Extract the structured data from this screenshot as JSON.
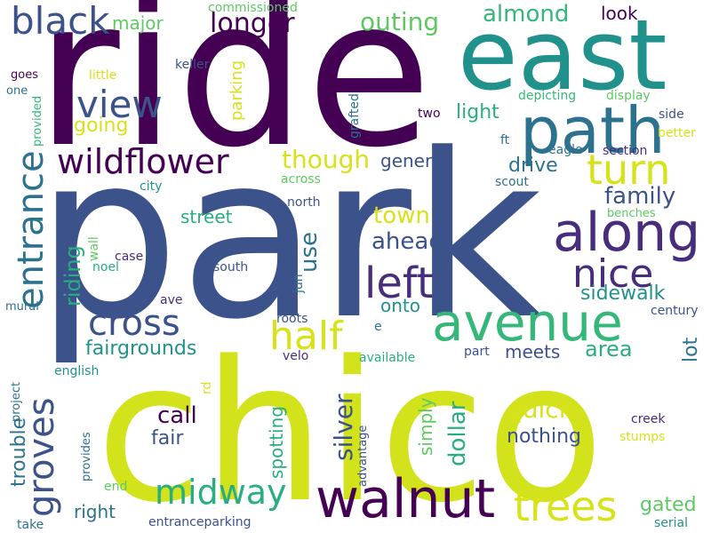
{
  "cloud": {
    "palette": {
      "dark_purple": "#440154",
      "purple": "#472d7b",
      "indigo": "#3b528b",
      "blue": "#2c728e",
      "teal": "#21918c",
      "green_teal": "#28ae80",
      "green": "#5ec962",
      "lime": "#addc30",
      "yellow": "#d8e219"
    },
    "words": [
      {
        "text": "ride",
        "color": "#440154"
      },
      {
        "text": "park",
        "color": "#3b528b"
      },
      {
        "text": "chico",
        "color": "#d2e21b"
      },
      {
        "text": "east",
        "color": "#21918c"
      },
      {
        "text": "path",
        "color": "#2c728e"
      },
      {
        "text": "along",
        "color": "#472d7b"
      },
      {
        "text": "avenue",
        "color": "#35b779"
      },
      {
        "text": "walnut",
        "color": "#440154"
      },
      {
        "text": "trees",
        "color": "#d8e219"
      },
      {
        "text": "black",
        "color": "#3b528b"
      },
      {
        "text": "view",
        "color": "#3b528b"
      },
      {
        "text": "wildflower",
        "color": "#440154"
      },
      {
        "text": "entrance",
        "color": "#2c728e"
      },
      {
        "text": "turn",
        "color": "#d8e219"
      },
      {
        "text": "left",
        "color": "#472d7b"
      },
      {
        "text": "nice",
        "color": "#472d7b"
      },
      {
        "text": "cross",
        "color": "#3b528b"
      },
      {
        "text": "half",
        "color": "#d8e219"
      },
      {
        "text": "groves",
        "color": "#3b528b"
      },
      {
        "text": "midway",
        "color": "#28ae80"
      },
      {
        "text": "longer",
        "color": "#440154"
      },
      {
        "text": "outing",
        "color": "#5ec962"
      },
      {
        "text": "almond",
        "color": "#35b779"
      },
      {
        "text": "look",
        "color": "#440154"
      },
      {
        "text": "major",
        "color": "#5ec962"
      },
      {
        "text": "commissioned",
        "color": "#5ec962"
      },
      {
        "text": "keller",
        "color": "#3b528b"
      },
      {
        "text": "goes",
        "color": "#440154"
      },
      {
        "text": "one",
        "color": "#2c728e"
      },
      {
        "text": "little",
        "color": "#d8e219"
      },
      {
        "text": "provided",
        "color": "#35b779"
      },
      {
        "text": "going",
        "color": "#d8e219"
      },
      {
        "text": "parking",
        "color": "#d8e219"
      },
      {
        "text": "light",
        "color": "#28ae80"
      },
      {
        "text": "grafted",
        "color": "#2c728e"
      },
      {
        "text": "two",
        "color": "#440154"
      },
      {
        "text": "depicting",
        "color": "#35b779"
      },
      {
        "text": "display",
        "color": "#5ec962"
      },
      {
        "text": "side",
        "color": "#3b528b"
      },
      {
        "text": "better",
        "color": "#d8e219"
      },
      {
        "text": "ft",
        "color": "#2c728e"
      },
      {
        "text": "eagle",
        "color": "#2c728e"
      },
      {
        "text": "section",
        "color": "#472d7b"
      },
      {
        "text": "though",
        "color": "#d8e219"
      },
      {
        "text": "general",
        "color": "#3b528b"
      },
      {
        "text": "drive",
        "color": "#2c728e"
      },
      {
        "text": "family",
        "color": "#3b528b"
      },
      {
        "text": "scout",
        "color": "#2c728e"
      },
      {
        "text": "across",
        "color": "#5ec962"
      },
      {
        "text": "city",
        "color": "#21918c"
      },
      {
        "text": "north",
        "color": "#3b528b"
      },
      {
        "text": "street",
        "color": "#28ae80"
      },
      {
        "text": "town",
        "color": "#d8e219"
      },
      {
        "text": "ahead",
        "color": "#3b528b"
      },
      {
        "text": "use",
        "color": "#2c728e"
      },
      {
        "text": "benches",
        "color": "#5ec962"
      },
      {
        "text": "wall",
        "color": "#5ec962"
      },
      {
        "text": "noel",
        "color": "#28ae80"
      },
      {
        "text": "case",
        "color": "#472d7b"
      },
      {
        "text": "riding",
        "color": "#28ae80"
      },
      {
        "text": "south",
        "color": "#3b528b"
      },
      {
        "text": "jun",
        "color": "#2c728e"
      },
      {
        "text": "ave",
        "color": "#472d7b"
      },
      {
        "text": "onto",
        "color": "#21918c"
      },
      {
        "text": "sidewalk",
        "color": "#21918c"
      },
      {
        "text": "mural",
        "color": "#2c728e"
      },
      {
        "text": "century",
        "color": "#3b528b"
      },
      {
        "text": "roots",
        "color": "#3b528b"
      },
      {
        "text": "e",
        "color": "#2c728e"
      },
      {
        "text": "fairgrounds",
        "color": "#21918c"
      },
      {
        "text": "area",
        "color": "#28ae80"
      },
      {
        "text": "project",
        "color": "#2c728e"
      },
      {
        "text": "meets",
        "color": "#3b528b"
      },
      {
        "text": "lot",
        "color": "#2c728e"
      },
      {
        "text": "english",
        "color": "#21918c"
      },
      {
        "text": "velo",
        "color": "#472d7b"
      },
      {
        "text": "part",
        "color": "#3b528b"
      },
      {
        "text": "available",
        "color": "#28ae80"
      },
      {
        "text": "rd",
        "color": "#d8e219"
      },
      {
        "text": "silver",
        "color": "#3b528b"
      },
      {
        "text": "dollar",
        "color": "#28ae80"
      },
      {
        "text": "trouble",
        "color": "#2c728e"
      },
      {
        "text": "call",
        "color": "#440154"
      },
      {
        "text": "quick",
        "color": "#d8e219"
      },
      {
        "text": "simply",
        "color": "#5ec962"
      },
      {
        "text": "provides",
        "color": "#2c728e"
      },
      {
        "text": "fair",
        "color": "#3b528b"
      },
      {
        "text": "spotting",
        "color": "#28ae80"
      },
      {
        "text": "nothing",
        "color": "#3b528b"
      },
      {
        "text": "creek",
        "color": "#472d7b"
      },
      {
        "text": "stumps",
        "color": "#d8e219"
      },
      {
        "text": "advantage",
        "color": "#3b528b"
      },
      {
        "text": "gated",
        "color": "#5ec962"
      },
      {
        "text": "end",
        "color": "#5ec962"
      },
      {
        "text": "right",
        "color": "#2c728e"
      },
      {
        "text": "take",
        "color": "#2c728e"
      },
      {
        "text": "entranceparking",
        "color": "#3b528b"
      },
      {
        "text": "serial",
        "color": "#21918c"
      }
    ]
  }
}
